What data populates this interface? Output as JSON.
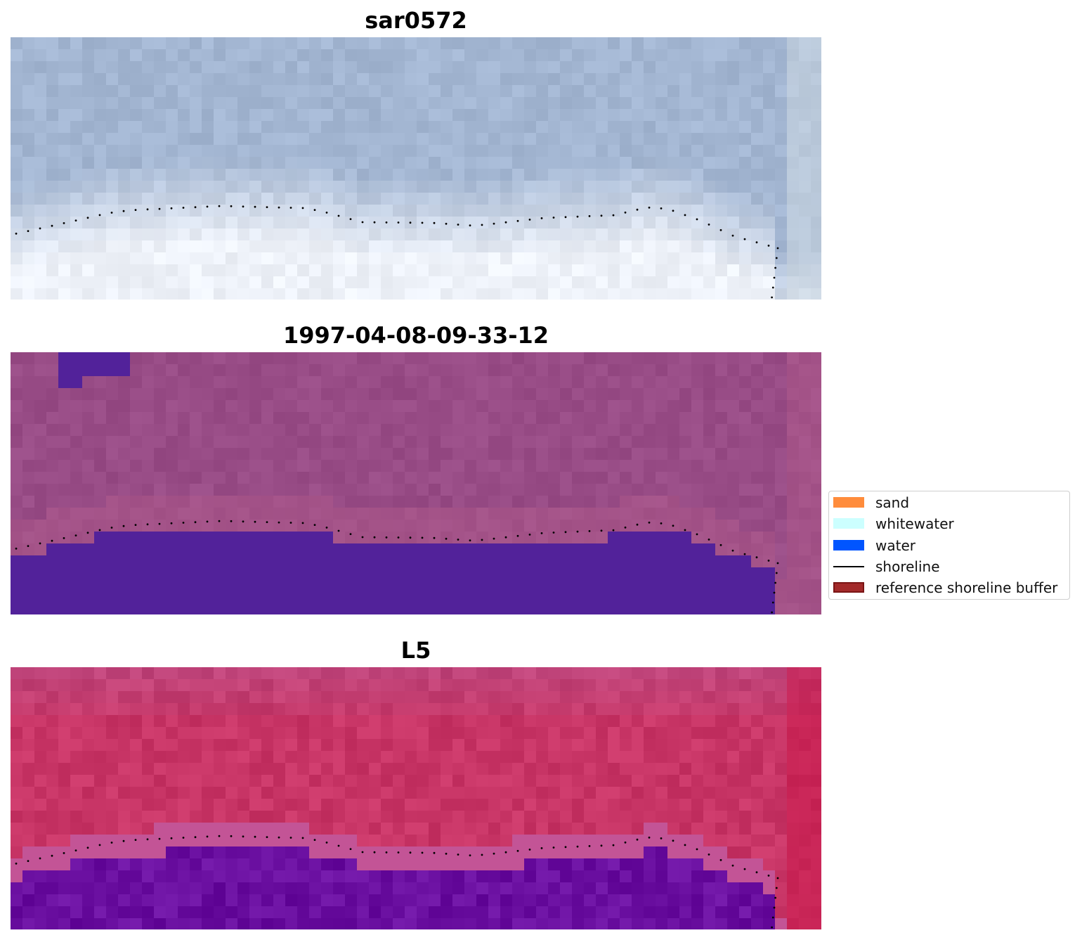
{
  "panels": [
    {
      "title": "sar0572",
      "kind": "rgb"
    },
    {
      "title": "1997-04-08-09-33-12",
      "kind": "classified"
    },
    {
      "title": "L5",
      "kind": "index"
    }
  ],
  "legend": {
    "items": [
      {
        "label": "sand",
        "color": "#ff8c3c",
        "type": "patch"
      },
      {
        "label": "whitewater",
        "color": "#ccffff",
        "type": "patch"
      },
      {
        "label": "water",
        "color": "#0055ff",
        "type": "patch"
      },
      {
        "label": "shoreline",
        "color": "#000000",
        "type": "line"
      },
      {
        "label": "reference shoreline buffer",
        "color": "#a32a2a",
        "type": "patch-outlined"
      }
    ]
  },
  "colors": {
    "sar_sea": "#a3b6d2",
    "sar_beach": "#eef2f9",
    "classified_land": "#984c86",
    "classified_water": "#52229a",
    "index_land": "#c83566",
    "index_water": "#6a0fa0",
    "shoreline_points": "#000000"
  }
}
